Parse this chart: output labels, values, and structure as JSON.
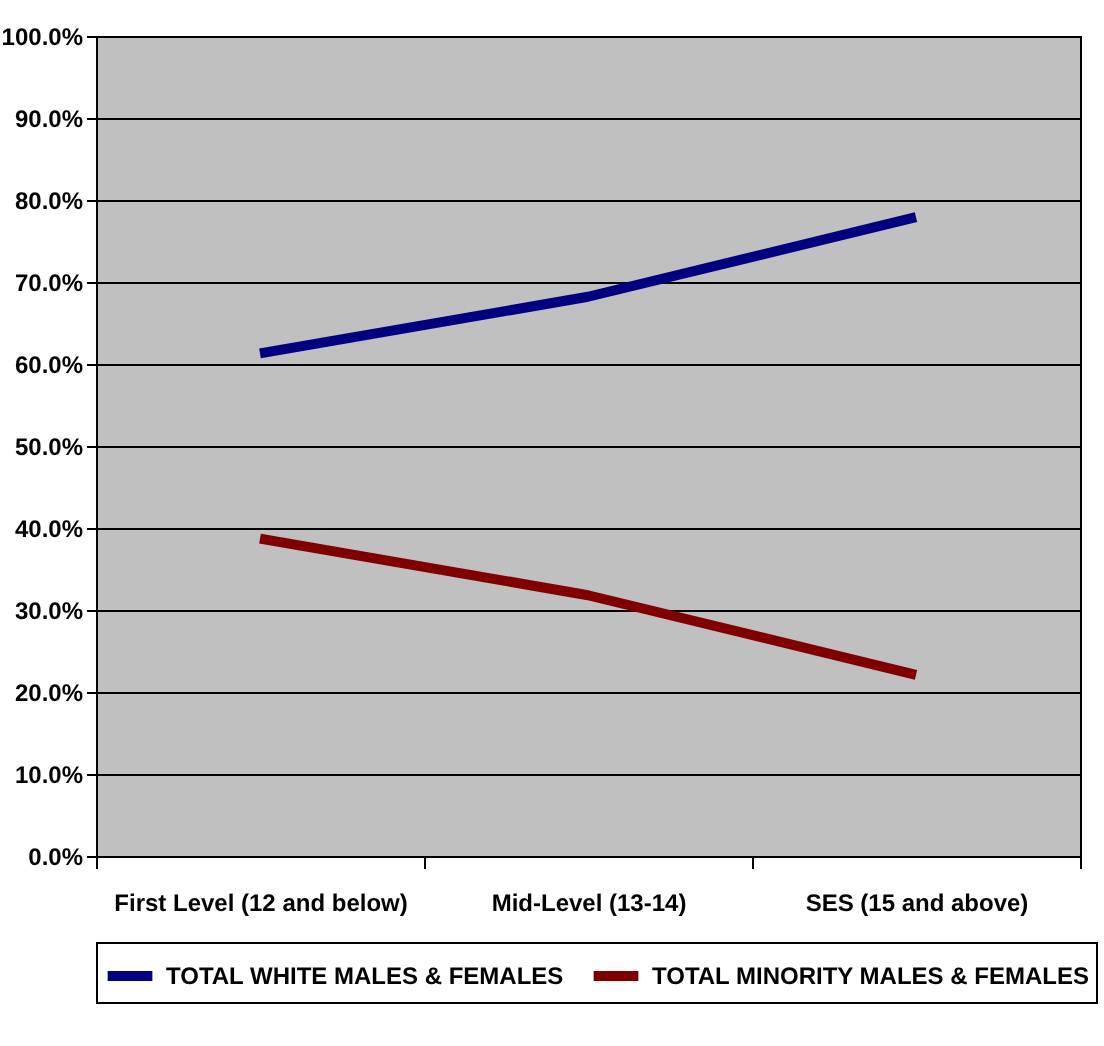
{
  "chart_data": {
    "type": "line",
    "categories": [
      "First Level (12 and below)",
      "Mid-Level (13-14)",
      "SES (15 and above)"
    ],
    "series": [
      {
        "name": "TOTAL WHITE MALES & FEMALES",
        "color": "#000080",
        "values": [
          61.3,
          68.2,
          77.9
        ]
      },
      {
        "name": "TOTAL MINORITY MALES & FEMALES",
        "color": "#800000",
        "values": [
          38.7,
          31.8,
          22.1
        ]
      }
    ],
    "ylim": [
      0,
      100
    ],
    "yticks": [
      {
        "value": 0,
        "label": "0.0%"
      },
      {
        "value": 10,
        "label": "10.0%"
      },
      {
        "value": 20,
        "label": "20.0%"
      },
      {
        "value": 30,
        "label": "30.0%"
      },
      {
        "value": 40,
        "label": "40.0%"
      },
      {
        "value": 50,
        "label": "50.0%"
      },
      {
        "value": 60,
        "label": "60.0%"
      },
      {
        "value": 70,
        "label": "70.0%"
      },
      {
        "value": 80,
        "label": "80.0%"
      },
      {
        "value": 90,
        "label": "90.0%"
      },
      {
        "value": 100,
        "label": "100.0%"
      }
    ],
    "grid": "y",
    "legend": "bottom",
    "marker": "none",
    "line_style": "solid"
  }
}
